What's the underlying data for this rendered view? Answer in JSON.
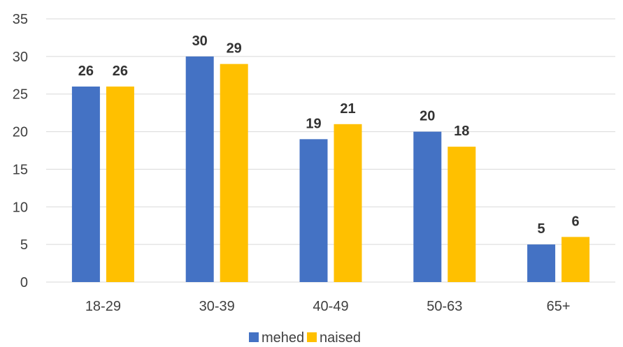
{
  "chart_data": {
    "type": "bar",
    "title": "",
    "xlabel": "",
    "ylabel": "",
    "categories": [
      "18-29",
      "30-39",
      "40-49",
      "50-63",
      "65+"
    ],
    "series": [
      {
        "name": "mehed",
        "values": [
          26,
          30,
          19,
          20,
          5
        ],
        "color": "#4472C4"
      },
      {
        "name": "naised",
        "values": [
          26,
          29,
          21,
          18,
          6
        ],
        "color": "#FFC000"
      }
    ],
    "ylim": [
      0,
      35
    ],
    "yticks": [
      0,
      5,
      10,
      15,
      20,
      25,
      30,
      35
    ],
    "grid": true,
    "data_labels": true,
    "legend": "bottom-center"
  }
}
